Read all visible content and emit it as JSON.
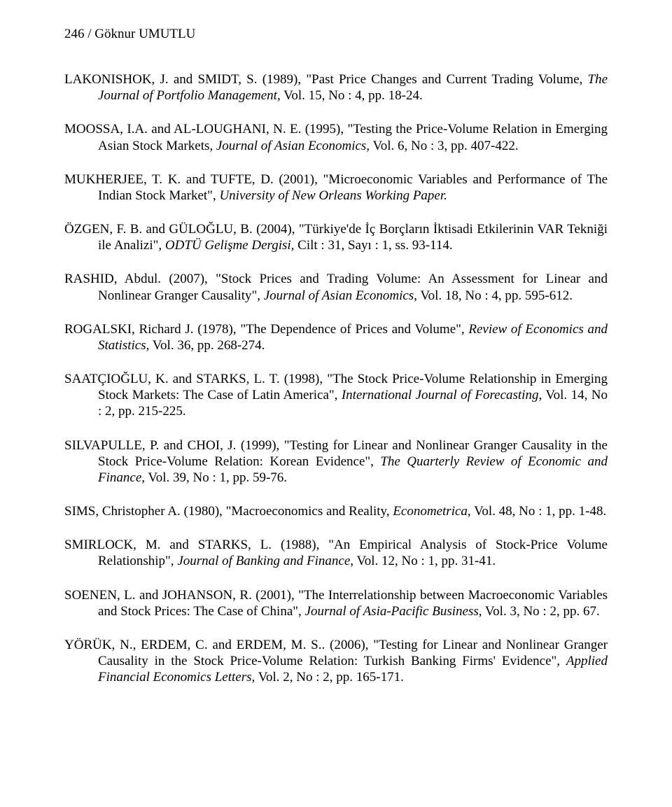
{
  "header": "246 / Göknur UMUTLU",
  "refs": {
    "r1": {
      "pre": "LAKONISHOK, J. and SMIDT, S. (1989), \"Past Price Changes and Current Trading Volume, ",
      "ital": "The Journal of Portfolio Management,",
      "post": " Vol. 15, No : 4, pp. 18-24."
    },
    "r2": {
      "pre": "MOOSSA, I.A. and AL-LOUGHANI, N. E. (1995), \"Testing the Price-Volume Relation in Emerging Asian Stock Markets, ",
      "ital": "Journal of Asian Economics,",
      "post": " Vol. 6, No : 3, pp. 407-422."
    },
    "r3": {
      "pre": "MUKHERJEE, T. K. and TUFTE, D. (2001), \"Microeconomic Variables and Performance of The Indian Stock Market\", ",
      "ital": "University of New Orleans Working Paper.",
      "post": ""
    },
    "r4": {
      "pre": "ÖZGEN, F. B. and GÜLOĞLU, B. (2004), \"Türkiye'de İç Borçların İktisadi Etkilerinin VAR Tekniği ile Analizi\", ",
      "ital": "ODTÜ Gelişme Dergisi,",
      "post": " Cilt : 31, Sayı : 1, ss. 93-114."
    },
    "r5": {
      "pre": "RASHID, Abdul. (2007), \"Stock Prices and Trading Volume: An Assessment for Linear and Nonlinear Granger Causality\", ",
      "ital": "Journal of Asian Economics,",
      "post": " Vol. 18, No : 4, pp. 595-612."
    },
    "r6": {
      "pre": "ROGALSKI, Richard J. (1978), \"The Dependence of Prices and Volume\", ",
      "ital": "Review of Economics and Statistics,",
      "post": " Vol. 36, pp. 268-274."
    },
    "r7": {
      "pre": "SAATÇIOĞLU, K. and STARKS, L. T. (1998), \"The Stock Price-Volume Relationship in Emerging Stock Markets: The Case of Latin America\", ",
      "ital": "International Journal of Forecasting,",
      "post": " Vol. 14, No : 2, pp. 215-225."
    },
    "r8": {
      "pre": "SILVAPULLE, P. and CHOI, J. (1999), \"Testing for Linear and Nonlinear Granger Causality in the Stock Price-Volume Relation: Korean Evidence\", ",
      "ital": "The Quarterly Review of Economic and Finance,",
      "post": " Vol. 39, No : 1, pp. 59-76."
    },
    "r9": {
      "pre": "SIMS, Christopher A. (1980), \"Macroeconomics and Reality, ",
      "ital": "Econometrica,",
      "post": " Vol. 48, No : 1, pp. 1-48."
    },
    "r10": {
      "pre": "SMIRLOCK, M. and STARKS, L. (1988), \"An Empirical Analysis of Stock-Price Volume Relationship\", ",
      "ital": "Journal of Banking and Finance,",
      "post": " Vol. 12, No : 1, pp. 31-41."
    },
    "r11": {
      "pre": "SOENEN, L. and JOHANSON, R. (2001), \"The Interrelationship between Macroeconomic Variables and Stock Prices: The Case of China\", ",
      "ital": "Journal of Asia-Pacific Business,",
      "post": " Vol. 3, No : 2, pp. 67."
    },
    "r12": {
      "pre": "YÖRÜK, N., ERDEM, C. and ERDEM, M. S.. (2006), \"Testing for Linear and Nonlinear Granger Causality in the Stock Price-Volume Relation: Turkish Banking Firms' Evidence\", ",
      "ital": "Applied Financial Economics Letters,",
      "post": " Vol. 2, No : 2, pp. 165-171."
    }
  }
}
